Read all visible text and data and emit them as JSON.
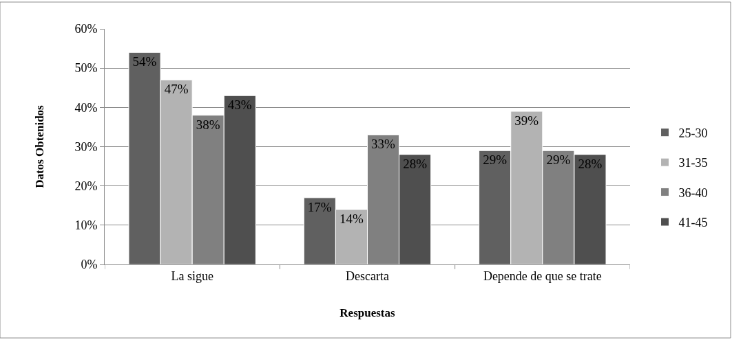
{
  "chart_data": {
    "type": "bar",
    "xlabel": "Respuestas",
    "ylabel": "Datos Obtenidos",
    "categories": [
      "La sigue",
      "Descarta",
      "Depende de que se trate"
    ],
    "series": [
      {
        "name": "25-30",
        "color": "#606060",
        "values": [
          54,
          17,
          29
        ],
        "value_labels": [
          "54%",
          "17%",
          "29%"
        ]
      },
      {
        "name": "31-35",
        "color": "#b3b3b3",
        "values": [
          47,
          14,
          39
        ],
        "value_labels": [
          "47%",
          "14%",
          "39%"
        ]
      },
      {
        "name": "36-40",
        "color": "#808080",
        "values": [
          38,
          33,
          29
        ],
        "value_labels": [
          "38%",
          "33%",
          "29%"
        ]
      },
      {
        "name": "41-45",
        "color": "#4f4f4f",
        "values": [
          43,
          28,
          28
        ],
        "value_labels": [
          "43%",
          "28%",
          "28%"
        ]
      }
    ],
    "ylim": [
      0,
      60
    ],
    "yticks": [
      {
        "value": 0,
        "label": "0%"
      },
      {
        "value": 10,
        "label": "10%"
      },
      {
        "value": 20,
        "label": "20%"
      },
      {
        "value": 30,
        "label": "30%"
      },
      {
        "value": 40,
        "label": "40%"
      },
      {
        "value": 50,
        "label": "50%"
      },
      {
        "value": 60,
        "label": "60%"
      }
    ],
    "grid": "y",
    "legend": "right"
  }
}
